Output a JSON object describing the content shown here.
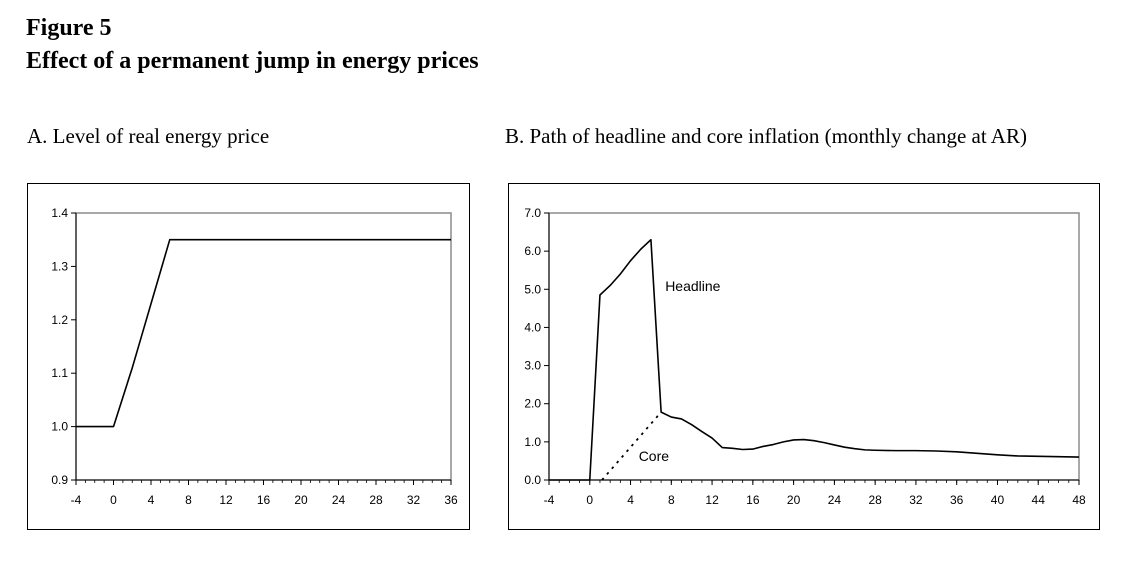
{
  "figure": {
    "number": "Figure 5",
    "title": "Effect of a permanent jump in energy prices"
  },
  "chart_data": [
    {
      "type": "line",
      "title": "A.  Level of real energy price",
      "xlabel": "",
      "ylabel": "",
      "xlim": [
        -4,
        36
      ],
      "ylim": [
        0.9,
        1.4
      ],
      "x_ticks": [
        -4,
        0,
        4,
        8,
        12,
        16,
        20,
        24,
        28,
        32,
        36
      ],
      "x_tick_labels": [
        "-4",
        "0",
        "4",
        "8",
        "12",
        "16",
        "20",
        "24",
        "28",
        "32",
        "36"
      ],
      "y_ticks": [
        0.9,
        1.0,
        1.1,
        1.2,
        1.3,
        1.4
      ],
      "y_tick_labels": [
        "0.9",
        "1.0",
        "1.1",
        "1.2",
        "1.3",
        "1.4"
      ],
      "grid": false,
      "legend": "none",
      "annotations": [],
      "series": [
        {
          "style": "solid",
          "color": "#000000",
          "x": [
            -4,
            0,
            1,
            2,
            3,
            4,
            5,
            6,
            36
          ],
          "y": [
            1.0,
            1.0,
            1.055,
            1.11,
            1.17,
            1.23,
            1.29,
            1.35,
            1.35
          ]
        }
      ]
    },
    {
      "type": "line",
      "title": "B.  Path of headline and core inflation (monthly change at AR)",
      "xlabel": "",
      "ylabel": "",
      "xlim": [
        -4,
        48
      ],
      "ylim": [
        0,
        7
      ],
      "x_ticks": [
        -4,
        0,
        4,
        8,
        12,
        16,
        20,
        24,
        28,
        32,
        36,
        40,
        44,
        48
      ],
      "x_tick_labels": [
        "-4",
        "0",
        "4",
        "8",
        "12",
        "16",
        "20",
        "24",
        "28",
        "32",
        "36",
        "40",
        "44",
        "48"
      ],
      "y_ticks": [
        0,
        1,
        2,
        3,
        4,
        5,
        6,
        7
      ],
      "y_tick_labels": [
        "0.0",
        "1.0",
        "2.0",
        "3.0",
        "4.0",
        "5.0",
        "6.0",
        "7.0"
      ],
      "grid": false,
      "legend": "none",
      "annotations": [
        {
          "text": "Headline",
          "x": 7.4,
          "y": 4.95
        },
        {
          "text": "Core",
          "x": 4.8,
          "y": 0.5
        }
      ],
      "series": [
        {
          "style": "solid",
          "color": "#000000",
          "x": [
            -4,
            0,
            1,
            2,
            3,
            4,
            5,
            6,
            7,
            8,
            9,
            10,
            11,
            12,
            13,
            14,
            15,
            16,
            17,
            18,
            19,
            20,
            21,
            22,
            23,
            24,
            25,
            26,
            27,
            28,
            30,
            32,
            34,
            36,
            38,
            40,
            42,
            44,
            46,
            48
          ],
          "y": [
            0,
            0,
            4.85,
            5.1,
            5.4,
            5.75,
            6.05,
            6.3,
            1.78,
            1.65,
            1.6,
            1.45,
            1.27,
            1.1,
            0.85,
            0.83,
            0.8,
            0.81,
            0.88,
            0.93,
            1.0,
            1.05,
            1.06,
            1.03,
            0.98,
            0.92,
            0.86,
            0.82,
            0.79,
            0.78,
            0.77,
            0.77,
            0.76,
            0.74,
            0.7,
            0.66,
            0.63,
            0.62,
            0.61,
            0.6
          ]
        },
        {
          "style": "dotted",
          "color": "#000000",
          "x": [
            1.2,
            7
          ],
          "y": [
            0,
            1.78
          ]
        }
      ]
    }
  ]
}
